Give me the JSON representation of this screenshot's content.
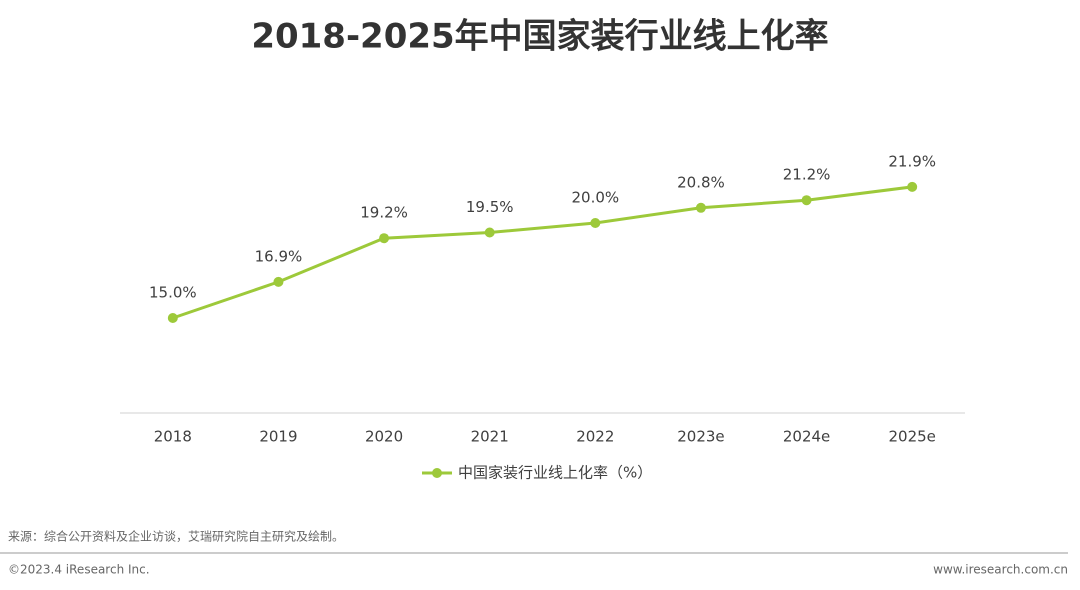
{
  "chart_data": {
    "type": "line",
    "title": "2018-2025年中国家装行业线上化率",
    "categories": [
      "2018",
      "2019",
      "2020",
      "2021",
      "2022",
      "2023e",
      "2024e",
      "2025e"
    ],
    "series": [
      {
        "name": "中国家装行业线上化率（%）",
        "color": "#9dc93a",
        "values": [
          15.0,
          16.9,
          19.2,
          19.5,
          20.0,
          20.8,
          21.2,
          21.9
        ],
        "value_labels": [
          "15.0%",
          "16.9%",
          "19.2%",
          "19.5%",
          "20.0%",
          "20.8%",
          "21.2%",
          "21.9%"
        ]
      }
    ],
    "ylim": [
      10,
      25
    ],
    "grid": false,
    "legend": "bottom"
  },
  "notes": {
    "source": "来源：综合公开资料及企业访谈，艾瑞研究院自主研究及绘制。",
    "copyright": "©2023.4 iResearch Inc.",
    "website": "www.iresearch.com.cn"
  }
}
